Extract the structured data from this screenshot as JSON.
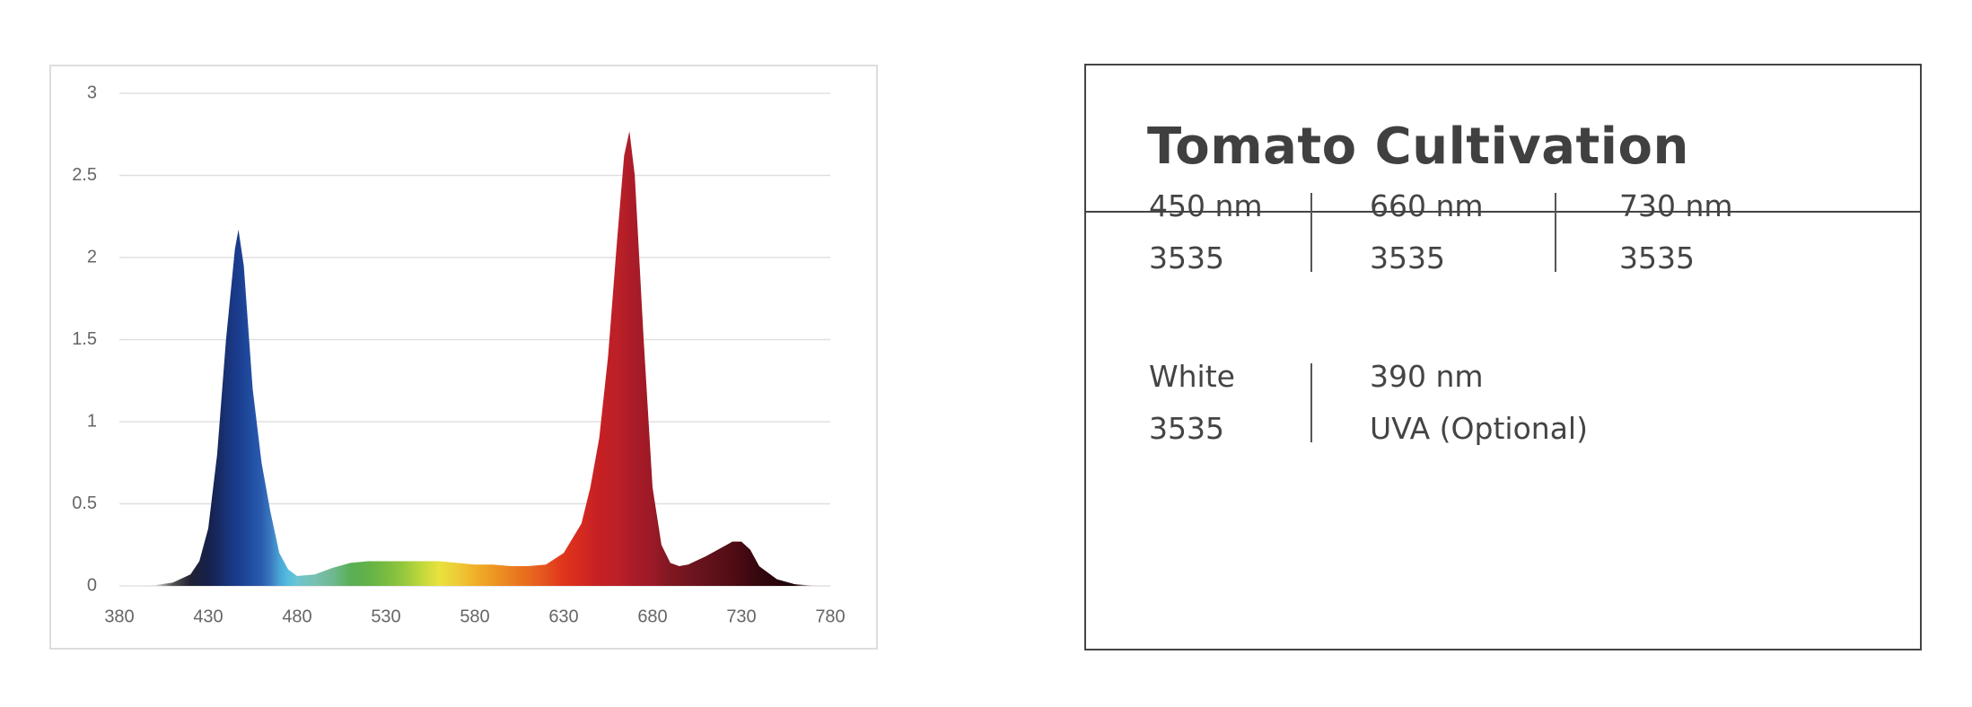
{
  "chart_data": {
    "type": "area",
    "x": [
      380,
      400,
      410,
      420,
      425,
      430,
      435,
      440,
      445,
      447,
      450,
      455,
      460,
      465,
      470,
      475,
      480,
      490,
      500,
      510,
      520,
      530,
      540,
      550,
      560,
      570,
      580,
      590,
      600,
      610,
      620,
      630,
      640,
      645,
      650,
      655,
      660,
      664,
      667,
      670,
      675,
      680,
      685,
      690,
      695,
      700,
      710,
      720,
      725,
      730,
      735,
      740,
      750,
      760,
      770,
      780
    ],
    "values": [
      0,
      0.005,
      0.02,
      0.07,
      0.15,
      0.35,
      0.8,
      1.5,
      2.05,
      2.17,
      1.95,
      1.2,
      0.75,
      0.45,
      0.2,
      0.1,
      0.06,
      0.07,
      0.11,
      0.14,
      0.15,
      0.15,
      0.15,
      0.15,
      0.15,
      0.14,
      0.13,
      0.13,
      0.12,
      0.12,
      0.13,
      0.2,
      0.38,
      0.6,
      0.9,
      1.4,
      2.1,
      2.62,
      2.77,
      2.5,
      1.5,
      0.6,
      0.25,
      0.14,
      0.12,
      0.13,
      0.18,
      0.24,
      0.27,
      0.27,
      0.22,
      0.12,
      0.04,
      0.01,
      0.002,
      0
    ],
    "colors": [
      "#ffffff",
      "#e0e0e0",
      "#555555",
      "#222233",
      "#1a2240",
      "#16204a",
      "#17285f",
      "#183275",
      "#1a3a88",
      "#1b3d8f",
      "#1d4496",
      "#2250a3",
      "#2a5cb0",
      "#3a78c0",
      "#4aa4d4",
      "#55bde0",
      "#6cc4d0",
      "#78c0b0",
      "#70b890",
      "#5aae55",
      "#62b248",
      "#78bc40",
      "#96c83c",
      "#c0d83c",
      "#e8e23c",
      "#eecc38",
      "#f0b028",
      "#ee9822",
      "#ea8020",
      "#e86a1e",
      "#e4521e",
      "#e0341c",
      "#d42a20",
      "#cc2422",
      "#c62024",
      "#c02025",
      "#bc2028",
      "#b41f28",
      "#ae1d28",
      "#a81c28",
      "#a21a26",
      "#9a1a26",
      "#8c1824",
      "#801720",
      "#78161e",
      "#701520",
      "#64121c",
      "#580e16",
      "#500c14",
      "#480a12",
      "#3e0810",
      "#34070e",
      "#28060c",
      "#1c0508",
      "#e0d0d0",
      "#ffffff"
    ],
    "xlim": [
      380,
      780
    ],
    "ylim": [
      0,
      3
    ],
    "xticks": [
      380,
      430,
      480,
      530,
      580,
      630,
      680,
      730,
      780
    ],
    "yticks": [
      0,
      {
        "value": 0.5,
        "label": "0.5"
      },
      1,
      {
        "value": 1.5,
        "label": "1.5"
      },
      2,
      {
        "value": 2.5,
        "label": "2.5"
      },
      3
    ],
    "grid": true
  },
  "card": {
    "title": "Tomato Cultivation",
    "items": [
      {
        "name": "450 nm",
        "detail": "3535"
      },
      {
        "name": "660 nm",
        "detail": "3535"
      },
      {
        "name": "730 nm",
        "detail": "3535"
      },
      {
        "name": "White",
        "detail": "3535"
      },
      {
        "name": "390 nm",
        "detail": "UVA (Optional)"
      }
    ]
  }
}
